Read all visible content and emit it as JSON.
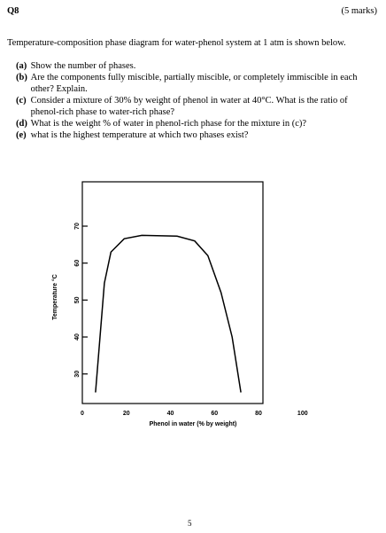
{
  "header": {
    "question": "Q8",
    "marks": "(5 marks)"
  },
  "intro": "Temperature-composition phase diagram for water-phenol system at 1 atm is shown below.",
  "parts": [
    {
      "label": "(a)",
      "text": "Show the number of phases."
    },
    {
      "label": "(b)",
      "text": "Are the components fully miscible, partially miscible, or completely immiscible in each other? Explain."
    },
    {
      "label": "(c)",
      "text": "Consider a mixture of 30% by weight of phenol in water at 40°C. What is the ratio of phenol-rich phase to water-rich phase?"
    },
    {
      "label": "(d)",
      "text": "What is the weight % of water in phenol-rich phase for the mixture in (c)?"
    },
    {
      "label": "(e)",
      "text": "what is the highest temperature at which two phases exist?"
    }
  ],
  "chart_data": {
    "type": "line",
    "x_label": "Phenol in water (% by weight)",
    "y_label": "Temperature °C",
    "x": [
      6,
      10,
      13,
      19,
      27,
      43,
      51,
      57,
      63,
      68,
      72
    ],
    "values": [
      25,
      54.6,
      63,
      66.6,
      67.5,
      67.3,
      66,
      62,
      52,
      40,
      25
    ],
    "color": "#000000",
    "xlim": [
      0,
      82
    ],
    "ylim": [
      22,
      82
    ],
    "xticks": [
      0,
      20,
      40,
      60,
      80,
      100
    ],
    "yticks": [
      30,
      40,
      50,
      60,
      70
    ]
  },
  "page_number": "5"
}
